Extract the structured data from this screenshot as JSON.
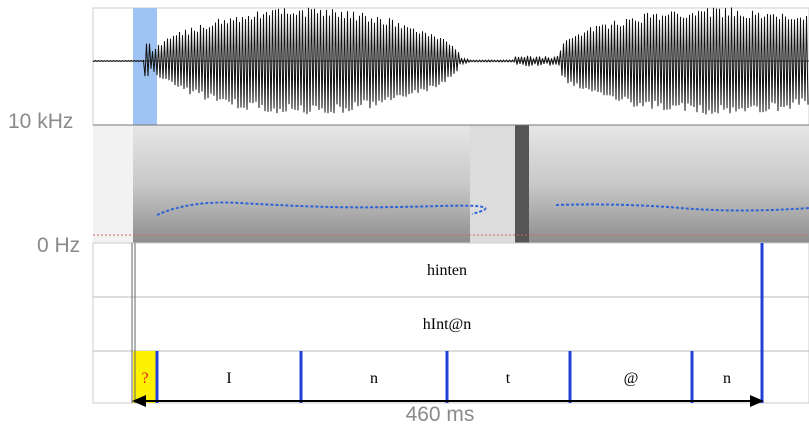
{
  "axis_labels": {
    "top": "10 kHz",
    "bottom": "0 Hz"
  },
  "tiers": {
    "word": "hinten",
    "phonemic": "hInt@n",
    "segments": [
      "?",
      "I",
      "n",
      "t",
      "@",
      "n"
    ]
  },
  "duration": "460 ms"
}
